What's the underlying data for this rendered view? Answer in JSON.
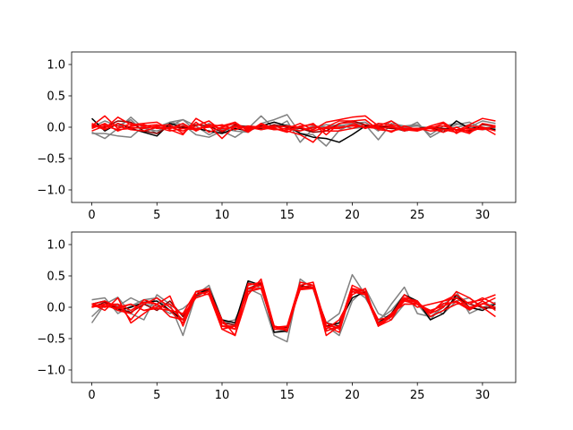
{
  "chart_data": [
    {
      "type": "line",
      "title": "",
      "xlabel": "",
      "ylabel": "",
      "xlim": [
        -1.55,
        32.55
      ],
      "ylim": [
        -1.2,
        1.2
      ],
      "xticks": [
        0,
        5,
        10,
        15,
        20,
        25,
        30
      ],
      "yticks": [
        -1.0,
        -0.5,
        0.0,
        0.5,
        1.0
      ],
      "ytick_labels": [
        "−1.0",
        "−0.5",
        "0.0",
        "0.5",
        "1.0"
      ],
      "grid": false,
      "series": [
        {
          "color": "#808080",
          "values": [
            -0.08,
            -0.18,
            -0.02,
            0.16,
            -0.02,
            -0.06,
            0.02,
            0.12,
            0.02,
            -0.12,
            -0.02,
            -0.06,
            -0.08,
            0.06,
            0.12,
            0.2,
            -0.1,
            -0.12,
            -0.3,
            -0.05,
            0.05,
            0.04,
            -0.2,
            0.06,
            0.02,
            0.04,
            -0.12,
            0.02,
            0.06,
            0.0,
            0.1,
            0.06
          ]
        },
        {
          "color": "#808080",
          "values": [
            -0.1,
            -0.1,
            -0.14,
            -0.16,
            0.02,
            -0.1,
            0.08,
            0.04,
            -0.12,
            -0.16,
            -0.06,
            -0.16,
            -0.02,
            0.18,
            -0.02,
            0.1,
            -0.24,
            -0.02,
            0.04,
            0.02,
            0.06,
            0.08,
            -0.06,
            0.1,
            -0.02,
            0.08,
            -0.16,
            -0.04,
            0.04,
            0.08,
            -0.02,
            0.02
          ]
        },
        {
          "color": "#808080",
          "values": [
            0.0,
            0.1,
            0.02,
            0.12,
            -0.08,
            0.0,
            0.08,
            0.12,
            -0.06,
            0.06,
            -0.04,
            0.02,
            0.02,
            -0.04,
            0.0,
            0.04,
            -0.06,
            0.02,
            0.0,
            0.04,
            -0.02,
            0.0,
            0.04,
            -0.02,
            0.0,
            0.02,
            -0.02,
            -0.04,
            0.0,
            0.04,
            -0.04,
            -0.02
          ]
        },
        {
          "color": "#000000",
          "values": [
            0.14,
            -0.06,
            0.06,
            -0.02,
            -0.08,
            -0.14,
            0.06,
            0.0,
            -0.02,
            -0.06,
            -0.1,
            -0.02,
            -0.06,
            0.02,
            0.08,
            0.02,
            -0.1,
            -0.16,
            -0.18,
            -0.24,
            -0.12,
            0.02,
            0.02,
            0.0,
            -0.06,
            -0.02,
            0.0,
            -0.08,
            0.1,
            -0.02,
            0.0,
            -0.04
          ]
        },
        {
          "color": "#8b0000",
          "values": [
            0.02,
            0.0,
            0.1,
            0.08,
            -0.06,
            -0.1,
            0.02,
            -0.02,
            0.04,
            0.02,
            -0.08,
            0.04,
            0.0,
            -0.02,
            0.04,
            0.0,
            -0.02,
            -0.08,
            -0.06,
            0.06,
            0.1,
            0.04,
            0.0,
            -0.02,
            -0.04,
            -0.02,
            0.0,
            -0.02,
            -0.04,
            -0.06,
            0.04,
            0.02
          ]
        },
        {
          "color": "#ff0000",
          "values": [
            0.02,
            0.18,
            -0.02,
            0.06,
            0.02,
            0.04,
            -0.02,
            0.06,
            -0.06,
            0.04,
            0.02,
            0.08,
            -0.06,
            0.04,
            -0.04,
            -0.02,
            0.06,
            -0.04,
            0.08,
            0.12,
            0.16,
            0.18,
            0.02,
            0.1,
            -0.04,
            -0.06,
            0.02,
            0.08,
            -0.06,
            0.04,
            0.14,
            0.1
          ]
        },
        {
          "color": "#ff0000",
          "values": [
            0.06,
            -0.02,
            0.16,
            0.04,
            0.06,
            0.08,
            -0.04,
            -0.12,
            0.14,
            0.02,
            -0.18,
            0.02,
            -0.08,
            0.06,
            -0.02,
            -0.06,
            -0.12,
            -0.24,
            0.0,
            0.1,
            0.1,
            0.12,
            -0.04,
            -0.06,
            -0.02,
            -0.02,
            -0.02,
            -0.08,
            0.0,
            -0.08,
            0.0,
            -0.12
          ]
        },
        {
          "color": "#ff0000",
          "values": [
            -0.02,
            0.06,
            -0.06,
            0.02,
            0.04,
            -0.02,
            0.0,
            -0.06,
            0.02,
            0.1,
            -0.06,
            0.02,
            -0.02,
            0.0,
            0.02,
            -0.04,
            0.0,
            0.06,
            -0.12,
            0.06,
            0.08,
            -0.02,
            0.06,
            0.04,
            -0.02,
            -0.06,
            0.0,
            0.02,
            -0.04,
            -0.02,
            -0.04,
            0.02
          ]
        },
        {
          "color": "#ff0000",
          "values": [
            0.04,
            -0.04,
            0.06,
            0.0,
            -0.02,
            0.02,
            0.04,
            -0.1,
            0.08,
            -0.08,
            0.0,
            0.06,
            -0.04,
            0.04,
            -0.02,
            -0.08,
            0.02,
            0.04,
            -0.06,
            -0.06,
            -0.02,
            0.04,
            0.0,
            -0.08,
            0.02,
            -0.04,
            -0.02,
            0.06,
            -0.1,
            0.02,
            0.0,
            -0.06
          ]
        },
        {
          "color": "#ff0000",
          "values": [
            0.0,
            0.04,
            0.02,
            -0.04,
            -0.06,
            0.0,
            -0.02,
            0.02,
            -0.02,
            0.0,
            0.04,
            -0.04,
            0.02,
            0.0,
            -0.04,
            -0.02,
            -0.06,
            0.0,
            -0.02,
            -0.02,
            0.04,
            0.0,
            0.02,
            0.02,
            -0.06,
            -0.02,
            -0.06,
            -0.04,
            -0.08,
            -0.04,
            -0.02,
            0.0
          ]
        },
        {
          "color": "#ff0000",
          "values": [
            -0.06,
            0.02,
            -0.04,
            -0.02,
            0.0,
            0.0,
            -0.06,
            -0.02,
            -0.04,
            0.02,
            -0.02,
            0.0,
            0.0,
            -0.04,
            0.0,
            0.02,
            0.0,
            -0.06,
            0.0,
            0.0,
            0.02,
            0.0,
            -0.02,
            0.0,
            -0.04,
            -0.04,
            0.0,
            -0.04,
            -0.04,
            -0.1,
            0.06,
            0.02
          ]
        }
      ]
    },
    {
      "type": "line",
      "title": "",
      "xlabel": "",
      "ylabel": "",
      "xlim": [
        -1.55,
        32.55
      ],
      "ylim": [
        -1.2,
        1.2
      ],
      "xticks": [
        0,
        5,
        10,
        15,
        20,
        25,
        30
      ],
      "yticks": [
        -1.0,
        -0.5,
        0.0,
        0.5,
        1.0
      ],
      "ytick_labels": [
        "−1.0",
        "−0.5",
        "0.0",
        "0.5",
        "1.0"
      ],
      "grid": false,
      "series": [
        {
          "color": "#808080",
          "values": [
            -0.25,
            0.05,
            0.16,
            -0.1,
            -0.2,
            0.2,
            0.05,
            -0.45,
            0.2,
            0.35,
            -0.2,
            -0.3,
            0.3,
            0.2,
            -0.45,
            -0.55,
            0.45,
            0.3,
            -0.25,
            -0.1,
            0.52,
            0.2,
            -0.25,
            0.05,
            0.32,
            -0.1,
            -0.15,
            0.0,
            0.25,
            -0.1,
            0.0,
            0.05
          ]
        },
        {
          "color": "#808080",
          "values": [
            0.12,
            0.15,
            -0.1,
            0.02,
            0.12,
            0.15,
            -0.06,
            -0.25,
            0.25,
            0.3,
            -0.3,
            -0.3,
            0.4,
            0.3,
            -0.3,
            -0.4,
            0.35,
            0.3,
            -0.38,
            -0.3,
            0.3,
            0.15,
            -0.2,
            -0.05,
            0.2,
            0.05,
            -0.2,
            0.05,
            0.18,
            -0.05,
            0.1,
            -0.02
          ]
        },
        {
          "color": "#808080",
          "values": [
            -0.15,
            0.05,
            0.02,
            0.15,
            0.05,
            0.02,
            -0.1,
            -0.02,
            0.15,
            0.3,
            -0.25,
            -0.2,
            0.25,
            0.4,
            -0.4,
            -0.35,
            0.4,
            0.35,
            -0.3,
            -0.45,
            0.1,
            0.3,
            -0.1,
            -0.2,
            0.05,
            0.05,
            -0.05,
            -0.1,
            0.1,
            0.15,
            -0.02,
            0.08
          ]
        },
        {
          "color": "#000000",
          "values": [
            0.05,
            0.1,
            -0.05,
            0.0,
            0.08,
            0.1,
            -0.05,
            -0.2,
            0.2,
            0.3,
            -0.2,
            -0.25,
            0.42,
            0.35,
            -0.4,
            -0.38,
            0.35,
            0.3,
            -0.3,
            -0.25,
            0.15,
            0.25,
            -0.25,
            -0.1,
            0.2,
            0.1,
            -0.2,
            -0.1,
            0.2,
            0.0,
            -0.05,
            0.05
          ]
        },
        {
          "color": "#8b0000",
          "values": [
            0.0,
            0.08,
            -0.02,
            -0.08,
            0.05,
            -0.05,
            0.1,
            -0.15,
            0.18,
            0.28,
            -0.25,
            -0.28,
            0.3,
            0.38,
            -0.35,
            -0.32,
            0.3,
            0.32,
            -0.25,
            -0.3,
            0.25,
            0.2,
            -0.3,
            -0.1,
            0.15,
            0.1,
            -0.15,
            -0.05,
            0.15,
            0.05,
            0.0,
            -0.02
          ]
        },
        {
          "color": "#ff0000",
          "values": [
            0.05,
            -0.05,
            0.15,
            -0.25,
            -0.1,
            0.05,
            0.18,
            -0.3,
            0.2,
            0.25,
            -0.35,
            -0.45,
            0.35,
            0.4,
            -0.35,
            -0.3,
            0.4,
            0.35,
            -0.45,
            -0.3,
            0.35,
            0.25,
            -0.3,
            -0.15,
            0.2,
            0.05,
            -0.1,
            0.0,
            0.25,
            0.15,
            0.0,
            -0.15
          ]
        },
        {
          "color": "#ff0000",
          "values": [
            0.0,
            0.05,
            0.05,
            -0.2,
            0.05,
            0.15,
            0.0,
            -0.2,
            0.2,
            0.25,
            -0.2,
            -0.45,
            0.2,
            0.45,
            -0.3,
            -0.35,
            0.35,
            0.4,
            -0.3,
            -0.4,
            0.3,
            0.2,
            -0.3,
            -0.2,
            0.15,
            0.0,
            0.05,
            0.1,
            0.15,
            0.0,
            0.05,
            0.15
          ]
        },
        {
          "color": "#ff0000",
          "values": [
            0.05,
            0.02,
            -0.02,
            0.05,
            -0.05,
            -0.02,
            -0.05,
            -0.1,
            0.25,
            0.2,
            -0.35,
            -0.3,
            0.3,
            0.3,
            -0.35,
            -0.35,
            0.3,
            0.3,
            -0.25,
            -0.35,
            0.3,
            0.25,
            -0.25,
            -0.15,
            0.1,
            0.05,
            -0.1,
            0.1,
            0.2,
            0.05,
            0.15,
            0.05
          ]
        },
        {
          "color": "#ff0000",
          "values": [
            0.02,
            0.0,
            0.05,
            -0.05,
            0.08,
            0.05,
            -0.15,
            -0.2,
            0.25,
            0.3,
            -0.3,
            -0.35,
            0.38,
            0.35,
            -0.3,
            -0.38,
            0.32,
            0.35,
            -0.35,
            -0.2,
            0.2,
            0.3,
            -0.3,
            -0.1,
            0.05,
            0.05,
            -0.05,
            0.02,
            0.1,
            -0.02,
            0.1,
            -0.05
          ]
        },
        {
          "color": "#ff0000",
          "values": [
            0.0,
            0.05,
            -0.05,
            -0.1,
            0.12,
            0.05,
            -0.05,
            -0.25,
            0.2,
            0.25,
            -0.25,
            -0.35,
            0.3,
            0.35,
            -0.3,
            -0.35,
            0.3,
            0.32,
            -0.38,
            -0.3,
            0.25,
            0.2,
            -0.2,
            -0.15,
            0.15,
            0.1,
            -0.15,
            -0.05,
            0.05,
            0.08,
            0.12,
            0.2
          ]
        },
        {
          "color": "#ff0000",
          "values": [
            0.05,
            0.1,
            0.0,
            0.05,
            -0.05,
            0.0,
            0.05,
            -0.12,
            0.15,
            0.22,
            -0.3,
            -0.3,
            0.25,
            0.3,
            -0.32,
            -0.3,
            0.28,
            0.3,
            -0.3,
            -0.32,
            0.28,
            0.22,
            -0.28,
            -0.12,
            0.12,
            0.08,
            -0.08,
            0.06,
            0.08,
            -0.04,
            0.06,
            0.0
          ]
        }
      ]
    }
  ]
}
